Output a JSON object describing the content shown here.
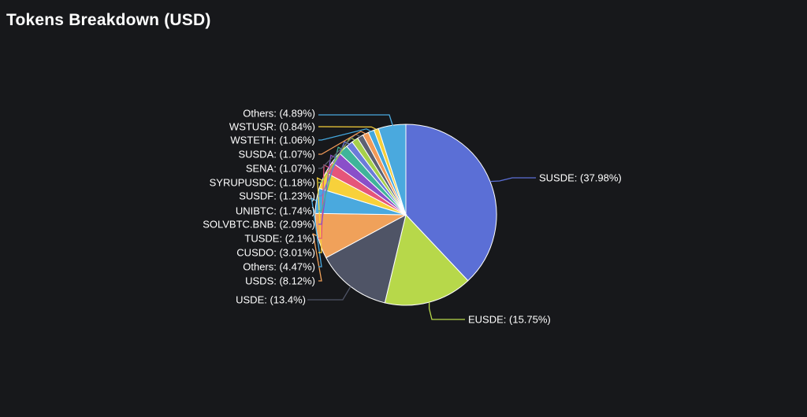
{
  "header": {
    "title": "Tokens Breakdown (USD)"
  },
  "chart_data": {
    "type": "pie",
    "title": "Tokens Breakdown (USD)",
    "legend": "none",
    "slices": [
      {
        "label": "SUSDE: (37.98%)",
        "name": "SUSDE",
        "value": 37.98,
        "color": "#5b6fd6"
      },
      {
        "label": "EUSDE: (15.75%)",
        "name": "EUSDE",
        "value": 15.75,
        "color": "#b7d84a"
      },
      {
        "label": "USDE: (13.4%)",
        "name": "USDE",
        "value": 13.4,
        "color": "#4f5466"
      },
      {
        "label": "USDS: (8.12%)",
        "name": "USDS",
        "value": 8.12,
        "color": "#f0a15a"
      },
      {
        "label": "Others: (4.47%)",
        "name": "Others",
        "value": 4.47,
        "color": "#4aa9de"
      },
      {
        "label": "CUSDO: (3.01%)",
        "name": "CUSDO",
        "value": 3.01,
        "color": "#f7d13b"
      },
      {
        "label": "TUSDE: (2.1%)",
        "name": "TUSDE",
        "value": 2.1,
        "color": "#e5557a"
      },
      {
        "label": "SOLVBTC.BNB: (2.09%)",
        "name": "SOLVBTC.BNB",
        "value": 2.09,
        "color": "#8a4fc9"
      },
      {
        "label": "UNIBTC: (1.74%)",
        "name": "UNIBTC",
        "value": 1.74,
        "color": "#3fb49a"
      },
      {
        "label": "SUSDF: (1.23%)",
        "name": "SUSDF",
        "value": 1.23,
        "color": "#6b7bd9"
      },
      {
        "label": "SYRUPUSDC: (1.18%)",
        "name": "SYRUPUSDC",
        "value": 1.18,
        "color": "#a6d04a"
      },
      {
        "label": "SENA: (1.07%)",
        "name": "SENA",
        "value": 1.07,
        "color": "#5d6173"
      },
      {
        "label": "SUSDA: (1.07%)",
        "name": "SUSDA",
        "value": 1.07,
        "color": "#f29a58"
      },
      {
        "label": "WSTETH: (1.06%)",
        "name": "WSTETH",
        "value": 1.06,
        "color": "#44a7dd"
      },
      {
        "label": "WSTUSR: (0.84%)",
        "name": "WSTUSR",
        "value": 0.84,
        "color": "#f6cf3a"
      },
      {
        "label": "Others: (4.89%)",
        "name": "Others",
        "value": 4.89,
        "color": "#4aa9de"
      }
    ]
  }
}
